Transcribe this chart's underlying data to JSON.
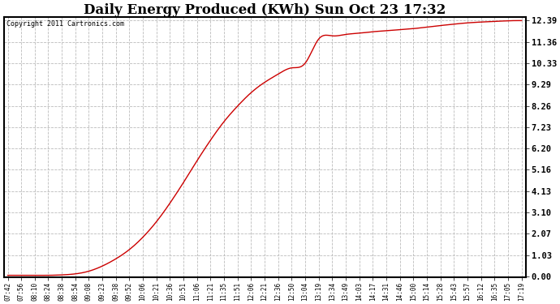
{
  "title": "Daily Energy Produced (KWh) Sun Oct 23 17:32",
  "copyright_text": "Copyright 2011 Cartronics.com",
  "line_color": "#cc0000",
  "background_color": "#ffffff",
  "plot_background": "#ffffff",
  "grid_color": "#bbbbbb",
  "title_fontsize": 12,
  "ytick_labels": [
    "0.00",
    "1.03",
    "2.07",
    "3.10",
    "4.13",
    "5.16",
    "6.20",
    "7.23",
    "8.26",
    "9.29",
    "10.33",
    "11.36",
    "12.39"
  ],
  "ytick_values": [
    0.0,
    1.03,
    2.07,
    3.1,
    4.13,
    5.16,
    6.2,
    7.23,
    8.26,
    9.29,
    10.33,
    11.36,
    12.39
  ],
  "ylim": [
    0.0,
    12.39
  ],
  "xtick_labels": [
    "07:42",
    "07:56",
    "08:10",
    "08:24",
    "08:38",
    "08:54",
    "09:08",
    "09:23",
    "09:38",
    "09:52",
    "10:06",
    "10:21",
    "10:36",
    "10:51",
    "11:06",
    "11:21",
    "11:35",
    "11:51",
    "12:06",
    "12:21",
    "12:36",
    "12:50",
    "13:04",
    "13:19",
    "13:34",
    "13:49",
    "14:03",
    "14:17",
    "14:31",
    "14:46",
    "15:00",
    "15:14",
    "15:28",
    "15:43",
    "15:57",
    "16:12",
    "16:35",
    "17:05",
    "17:19"
  ],
  "curve_x": [
    0,
    1,
    2,
    3,
    4,
    5,
    6,
    7,
    8,
    9,
    10,
    11,
    12,
    13,
    14,
    15,
    16,
    17,
    18,
    19,
    20,
    21,
    22,
    23,
    24,
    25,
    26,
    27,
    28,
    29,
    30,
    31,
    32,
    33,
    34,
    35,
    36,
    37,
    38
  ],
  "curve_y": [
    0.05,
    0.05,
    0.05,
    0.05,
    0.07,
    0.12,
    0.25,
    0.5,
    0.85,
    1.3,
    1.9,
    2.65,
    3.55,
    4.55,
    5.6,
    6.6,
    7.5,
    8.25,
    8.9,
    9.4,
    9.8,
    10.1,
    10.33,
    11.5,
    11.65,
    11.72,
    11.78,
    11.85,
    11.9,
    11.95,
    12.0,
    12.08,
    12.15,
    12.22,
    12.28,
    12.32,
    12.35,
    12.38,
    12.39
  ]
}
